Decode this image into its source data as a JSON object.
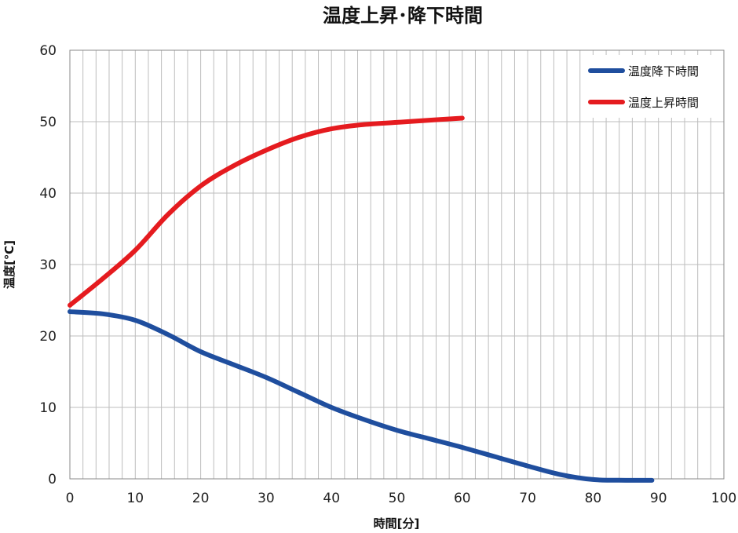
{
  "chart_data": {
    "type": "line",
    "title": "温度上昇･降下時間",
    "xlabel": "時間[分]",
    "ylabel": "温度[℃]",
    "xlim": [
      0,
      100
    ],
    "ylim": [
      0,
      60
    ],
    "x_ticks": [
      "0",
      "10",
      "20",
      "30",
      "40",
      "50",
      "60",
      "70",
      "80",
      "90",
      "100"
    ],
    "y_ticks": [
      "0",
      "10",
      "20",
      "30",
      "40",
      "50",
      "60"
    ],
    "grid": "vertical every 2 min, horizontal every 10",
    "legend_position": "top-right",
    "series": [
      {
        "name": "温度降下時間",
        "color": "#1f4e9e",
        "x": [
          0,
          5,
          10,
          15,
          20,
          25,
          30,
          35,
          40,
          45,
          50,
          55,
          60,
          65,
          70,
          75,
          80,
          85,
          89
        ],
        "y": [
          23.4,
          23.1,
          22.2,
          20.2,
          17.8,
          16.0,
          14.2,
          12.1,
          10.0,
          8.3,
          6.8,
          5.6,
          4.4,
          3.1,
          1.8,
          0.6,
          -0.1,
          -0.2,
          -0.2
        ]
      },
      {
        "name": "温度上昇時間",
        "color": "#e51b1f",
        "x": [
          0,
          5,
          10,
          15,
          20,
          25,
          30,
          35,
          40,
          45,
          50,
          55,
          60
        ],
        "y": [
          24.3,
          28.0,
          32.0,
          37.0,
          41.0,
          43.8,
          46.0,
          47.8,
          49.0,
          49.6,
          49.9,
          50.2,
          50.5
        ]
      }
    ]
  }
}
